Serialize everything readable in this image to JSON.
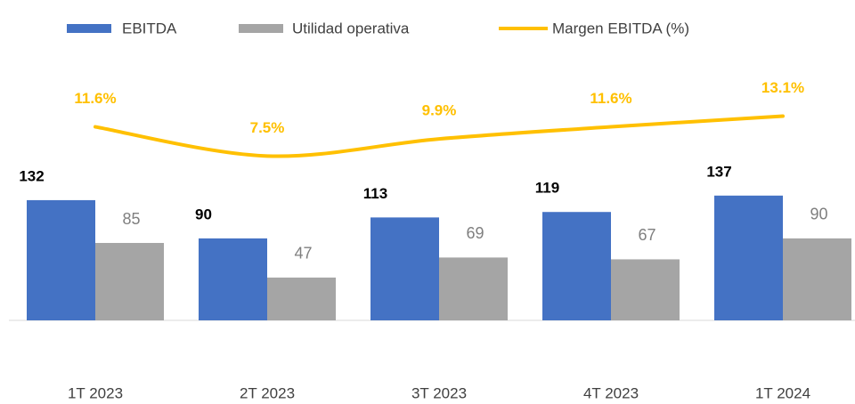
{
  "chart_data": {
    "type": "bar_line",
    "categories": [
      "1T 2023",
      "2T 2023",
      "3T 2023",
      "4T 2023",
      "1T 2024"
    ],
    "series": [
      {
        "name": "EBITDA",
        "color": "#4472c4",
        "type": "bar",
        "values": [
          132,
          90,
          113,
          119,
          137
        ]
      },
      {
        "name": "Utilidad operativa",
        "color": "#a5a5a5",
        "type": "bar",
        "values": [
          85,
          47,
          69,
          67,
          90
        ]
      },
      {
        "name": "Margen EBITDA (%)",
        "color": "#ffc000",
        "type": "line",
        "axis": "y2",
        "values": [
          11.6,
          7.5,
          9.9,
          11.6,
          13.1
        ],
        "value_labels": [
          "11.6%",
          "7.5%",
          "9.9%",
          "11.6%",
          "13.1%"
        ]
      }
    ],
    "ylim": [
      0,
      300
    ],
    "y2lim": [
      -15.6,
      22.8
    ],
    "legend": "top"
  }
}
